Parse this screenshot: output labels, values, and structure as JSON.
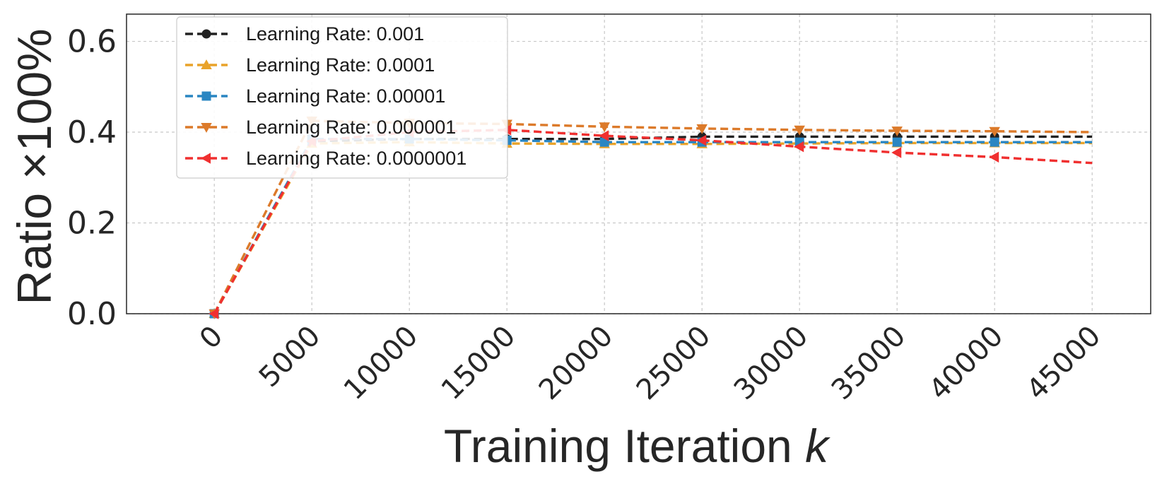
{
  "chart_data": {
    "type": "line",
    "title": "",
    "xlabel": "Training Iteration",
    "xlabel_var": "k",
    "ylabel": "Ratio ×100%",
    "x": [
      0,
      5000,
      10000,
      15000,
      20000,
      25000,
      30000,
      35000,
      40000,
      45000
    ],
    "x_tick_labels": [
      "0",
      "5000",
      "10000",
      "15000",
      "20000",
      "25000",
      "30000",
      "35000",
      "40000",
      "45000"
    ],
    "y_ticks": [
      0.0,
      0.2,
      0.4,
      0.6
    ],
    "y_tick_labels": [
      "0.0",
      "0.2",
      "0.4",
      "0.6"
    ],
    "xlim": [
      -4500,
      48000
    ],
    "ylim": [
      0.0,
      0.66
    ],
    "grid": true,
    "legend_position": "top-left",
    "series": [
      {
        "name": "Learning Rate: 0.001",
        "color": "#222222",
        "marker": "circle",
        "values": [
          0.0,
          0.38,
          0.385,
          0.385,
          0.385,
          0.39,
          0.39,
          0.39,
          0.39,
          0.39
        ]
      },
      {
        "name": "Learning Rate: 0.0001",
        "color": "#E9A32A",
        "marker": "triangle-up",
        "values": [
          0.0,
          0.375,
          0.378,
          0.375,
          0.374,
          0.374,
          0.375,
          0.376,
          0.376,
          0.376
        ]
      },
      {
        "name": "Learning Rate: 0.00001",
        "color": "#2A86C2",
        "marker": "square",
        "values": [
          0.0,
          0.385,
          0.385,
          0.382,
          0.378,
          0.378,
          0.378,
          0.378,
          0.378,
          0.378
        ]
      },
      {
        "name": "Learning Rate: 0.000001",
        "color": "#DC7A2A",
        "marker": "triangle-down",
        "values": [
          0.0,
          0.425,
          0.42,
          0.418,
          0.412,
          0.408,
          0.405,
          0.403,
          0.402,
          0.4
        ]
      },
      {
        "name": "Learning Rate: 0.0000001",
        "color": "#F03030",
        "marker": "triangle-left",
        "values": [
          0.0,
          0.38,
          0.4,
          0.405,
          0.392,
          0.382,
          0.368,
          0.355,
          0.345,
          0.332
        ]
      }
    ]
  }
}
